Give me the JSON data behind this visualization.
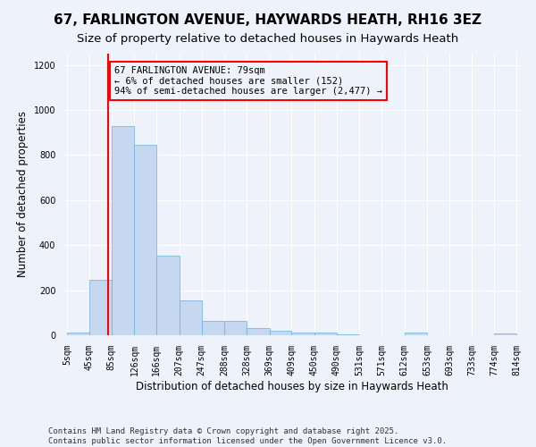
{
  "title": "67, FARLINGTON AVENUE, HAYWARDS HEATH, RH16 3EZ",
  "subtitle": "Size of property relative to detached houses in Haywards Heath",
  "xlabel": "Distribution of detached houses by size in Haywards Heath",
  "ylabel": "Number of detached properties",
  "bar_color": "#c5d8f0",
  "bar_edge_color": "#6baed6",
  "bar_left_edges": [
    5,
    45,
    85,
    126,
    166,
    207,
    247,
    288,
    328,
    369,
    409,
    450,
    490,
    531,
    571,
    612,
    653,
    693,
    733,
    774
  ],
  "bar_widths": [
    40,
    40,
    41,
    40,
    41,
    40,
    41,
    40,
    41,
    40,
    41,
    40,
    41,
    40,
    41,
    41,
    40,
    40,
    41,
    40
  ],
  "bar_heights": [
    10,
    245,
    930,
    845,
    355,
    155,
    63,
    63,
    30,
    20,
    12,
    12,
    4,
    0,
    0,
    10,
    0,
    0,
    0,
    8
  ],
  "tick_labels": [
    "5sqm",
    "45sqm",
    "85sqm",
    "126sqm",
    "166sqm",
    "207sqm",
    "247sqm",
    "288sqm",
    "328sqm",
    "369sqm",
    "409sqm",
    "450sqm",
    "490sqm",
    "531sqm",
    "571sqm",
    "612sqm",
    "653sqm",
    "693sqm",
    "733sqm",
    "774sqm",
    "814sqm"
  ],
  "tick_positions": [
    5,
    45,
    85,
    126,
    166,
    207,
    247,
    288,
    328,
    369,
    409,
    450,
    490,
    531,
    571,
    612,
    653,
    693,
    733,
    774,
    814
  ],
  "red_line_x": 79,
  "annotation_text": "67 FARLINGTON AVENUE: 79sqm\n← 6% of detached houses are smaller (152)\n94% of semi-detached houses are larger (2,477) →",
  "ylim": [
    0,
    1250
  ],
  "yticks": [
    0,
    200,
    400,
    600,
    800,
    1000,
    1200
  ],
  "footnote": "Contains HM Land Registry data © Crown copyright and database right 2025.\nContains public sector information licensed under the Open Government Licence v3.0.",
  "background_color": "#eef3fb",
  "grid_color": "#ffffff",
  "title_fontsize": 11,
  "subtitle_fontsize": 9.5,
  "axis_label_fontsize": 8.5,
  "tick_fontsize": 7,
  "annotation_fontsize": 7.5,
  "footnote_fontsize": 6.5
}
